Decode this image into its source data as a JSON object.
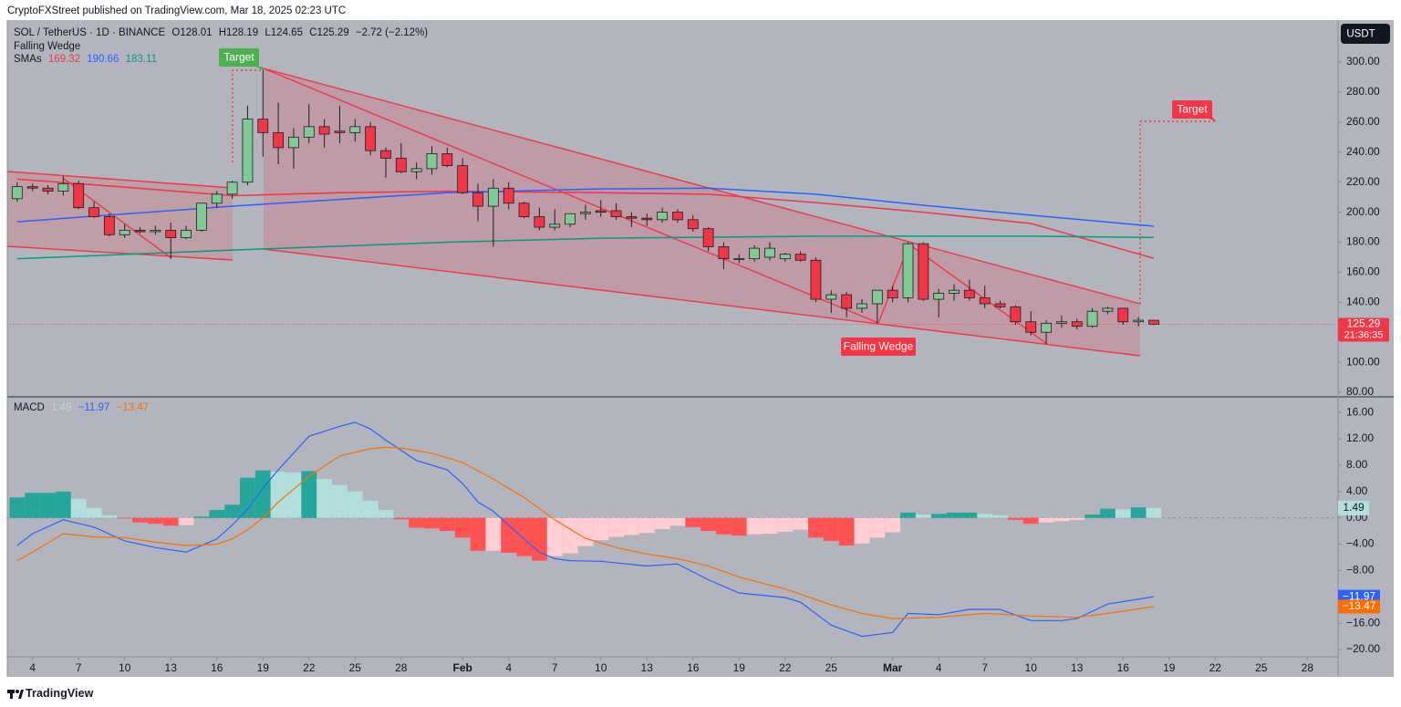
{
  "header": {
    "publisher": "CryptoFXStreet published on TradingView.com, Mar 18, 2025 02:23 UTC"
  },
  "footer": {
    "brand": "TradingView"
  },
  "chart_data": [
    {
      "type": "candlestick",
      "title": "SOL / TetherUS · 1D · BINANCE",
      "ohlc_labels": [
        "O128.01",
        "H128.19",
        "L124.65",
        "C125.29"
      ],
      "change_label": "−2.72 (−2.12%)",
      "pattern_label": "Falling Wedge",
      "sma_label": "SMAs",
      "currency": "USDT",
      "last_price_label": "125.29",
      "countdown": "21:36:35",
      "annotations": [
        "Target",
        "Target",
        "Falling Wedge"
      ],
      "up_color": "#81c995",
      "down_color": "#f23645",
      "outline_color": "#1e1e1e",
      "x": [
        "Jan 3",
        "Jan 4",
        "Jan 5",
        "Jan 6",
        "Jan 7",
        "Jan 8",
        "Jan 9",
        "Jan 10",
        "Jan 11",
        "Jan 12",
        "Jan 13",
        "Jan 14",
        "Jan 15",
        "Jan 16",
        "Jan 17",
        "Jan 18",
        "Jan 19",
        "Jan 20",
        "Jan 21",
        "Jan 22",
        "Jan 23",
        "Jan 24",
        "Jan 25",
        "Jan 26",
        "Jan 27",
        "Jan 28",
        "Jan 29",
        "Jan 30",
        "Jan 31",
        "Feb 1",
        "Feb 2",
        "Feb 3",
        "Feb 4",
        "Feb 5",
        "Feb 6",
        "Feb 7",
        "Feb 8",
        "Feb 9",
        "Feb 10",
        "Feb 11",
        "Feb 12",
        "Feb 13",
        "Feb 14",
        "Feb 15",
        "Feb 16",
        "Feb 17",
        "Feb 18",
        "Feb 19",
        "Feb 20",
        "Feb 21",
        "Feb 22",
        "Feb 23",
        "Feb 24",
        "Feb 25",
        "Feb 26",
        "Feb 27",
        "Feb 28",
        "Mar 1",
        "Mar 2",
        "Mar 3",
        "Mar 4",
        "Mar 5",
        "Mar 6",
        "Mar 7",
        "Mar 8",
        "Mar 9",
        "Mar 10",
        "Mar 11",
        "Mar 12",
        "Mar 13",
        "Mar 14",
        "Mar 15",
        "Mar 16",
        "Mar 17",
        "Mar 18"
      ],
      "open": [
        209,
        217,
        216,
        214,
        219,
        203,
        197,
        185,
        188,
        187,
        188,
        183,
        188,
        206,
        212,
        220,
        262,
        253,
        243,
        250,
        257,
        254,
        253,
        257,
        241,
        236,
        227,
        229,
        239,
        231,
        213,
        204,
        216,
        206,
        197,
        190,
        192,
        199,
        201,
        201,
        197,
        196,
        195,
        200,
        195,
        189,
        177,
        169,
        169,
        170,
        169,
        172,
        168,
        142,
        145,
        136,
        139,
        148,
        143,
        179,
        142,
        146,
        148,
        143,
        139,
        137,
        127,
        120,
        126,
        127,
        124,
        134,
        136,
        127,
        128.01
      ],
      "high": [
        220,
        219,
        218,
        224,
        221,
        207,
        199,
        192,
        190,
        191,
        193,
        191,
        206,
        214,
        221,
        271,
        295,
        273,
        256,
        272,
        262,
        271,
        262,
        260,
        243,
        246,
        233,
        244,
        243,
        236,
        219,
        222,
        220,
        207,
        203,
        202,
        198,
        205,
        208,
        206,
        200,
        199,
        203,
        202,
        198,
        190,
        180,
        172,
        178,
        180,
        173,
        174,
        170,
        148,
        147,
        142,
        148,
        151,
        180,
        180,
        149,
        152,
        155,
        151,
        141,
        138,
        134,
        128,
        131,
        129,
        136,
        137,
        136,
        130,
        128.19
      ],
      "low": [
        207,
        214,
        212,
        211,
        202,
        196,
        184,
        183,
        186,
        185,
        169,
        182,
        187,
        203,
        209,
        218,
        237,
        232,
        229,
        246,
        243,
        246,
        247,
        238,
        223,
        226,
        222,
        225,
        230,
        212,
        194,
        177,
        202,
        196,
        188,
        188,
        190,
        195,
        197,
        195,
        190,
        191,
        193,
        193,
        187,
        174,
        162,
        166,
        167,
        168,
        167,
        167,
        140,
        133,
        130,
        133,
        126,
        140,
        140,
        141,
        130,
        141,
        141,
        136,
        136,
        125,
        118,
        112,
        123,
        122,
        123,
        132,
        125,
        124,
        124.65
      ],
      "close": [
        217,
        216,
        214,
        219,
        203,
        197,
        185,
        188,
        187,
        188,
        183,
        188,
        206,
        212,
        220,
        262,
        253,
        243,
        250,
        257,
        252,
        253,
        257,
        241,
        236,
        227,
        229,
        239,
        231,
        213,
        204,
        216,
        206,
        197,
        190,
        192,
        199,
        200,
        200,
        197,
        196,
        195,
        200,
        195,
        189,
        177,
        169,
        169,
        176,
        176,
        172,
        168,
        142,
        145,
        136,
        139,
        148,
        143,
        179,
        142,
        146,
        148,
        143,
        139,
        137,
        127,
        120,
        126,
        127,
        124,
        134,
        136,
        127,
        128.01,
        125.29
      ],
      "series": [
        {
          "color": "#f23645",
          "value_label": "169.32",
          "x": [
            "Jan 3",
            "Jan 10",
            "Jan 17",
            "Jan 24",
            "Jan 31",
            "Feb 10",
            "Feb 17",
            "Feb 24",
            "Mar 3",
            "Mar 10",
            "Mar 18"
          ],
          "values": [
            222,
            216.7,
            211,
            213,
            214,
            213,
            212,
            206.4,
            200,
            192.5,
            169.32
          ]
        },
        {
          "color": "#2962ff",
          "value_label": "190.66",
          "x": [
            "Jan 3",
            "Jan 17",
            "Jan 31",
            "Feb 10",
            "Feb 17",
            "Feb 24",
            "Mar 3",
            "Mar 10",
            "Mar 18"
          ],
          "values": [
            193.6,
            204,
            213,
            215.5,
            216,
            212,
            204.6,
            198,
            190.66
          ]
        },
        {
          "color": "#089981",
          "value_label": "183.11",
          "x": [
            "Jan 3",
            "Jan 17",
            "Jan 31",
            "Feb 10",
            "Feb 24",
            "Mar 10",
            "Mar 18"
          ],
          "values": [
            169,
            174.8,
            180,
            182.7,
            184,
            184,
            183.11
          ]
        }
      ],
      "xlim": [
        "Jan 2",
        "Mar 30"
      ],
      "xticks": [
        {
          "value": "Jan 4",
          "label": "4"
        },
        {
          "value": "Jan 7",
          "label": "7"
        },
        {
          "value": "Jan 10",
          "label": "10"
        },
        {
          "value": "Jan 13",
          "label": "13"
        },
        {
          "value": "Jan 16",
          "label": "16"
        },
        {
          "value": "Jan 19",
          "label": "19"
        },
        {
          "value": "Jan 22",
          "label": "22"
        },
        {
          "value": "Jan 25",
          "label": "25"
        },
        {
          "value": "Jan 28",
          "label": "28"
        },
        {
          "value": "Feb 1",
          "label": "Feb"
        },
        {
          "value": "Feb 4",
          "label": "4"
        },
        {
          "value": "Feb 7",
          "label": "7"
        },
        {
          "value": "Feb 10",
          "label": "10"
        },
        {
          "value": "Feb 13",
          "label": "13"
        },
        {
          "value": "Feb 16",
          "label": "16"
        },
        {
          "value": "Feb 19",
          "label": "19"
        },
        {
          "value": "Feb 22",
          "label": "22"
        },
        {
          "value": "Feb 25",
          "label": "25"
        },
        {
          "value": "Mar 1",
          "label": "Mar"
        },
        {
          "value": "Mar 4",
          "label": "4"
        },
        {
          "value": "Mar 7",
          "label": "7"
        },
        {
          "value": "Mar 10",
          "label": "10"
        },
        {
          "value": "Mar 13",
          "label": "13"
        },
        {
          "value": "Mar 16",
          "label": "16"
        },
        {
          "value": "Mar 19",
          "label": "19"
        },
        {
          "value": "Mar 22",
          "label": "22"
        },
        {
          "value": "Mar 25",
          "label": "25"
        },
        {
          "value": "Mar 28",
          "label": "28"
        }
      ],
      "ylim": [
        77,
        328
      ],
      "yticks": [
        {
          "value": 80,
          "label": "80.00"
        },
        {
          "value": 100,
          "label": "100.00"
        },
        {
          "value": 120,
          "label": "120.00"
        },
        {
          "value": 140,
          "label": "140.00"
        },
        {
          "value": 160,
          "label": "160.00"
        },
        {
          "value": 180,
          "label": "180.00"
        },
        {
          "value": 200,
          "label": "200.00"
        },
        {
          "value": 220,
          "label": "220.00"
        },
        {
          "value": 240,
          "label": "240.00"
        },
        {
          "value": 260,
          "label": "260.00"
        },
        {
          "value": 280,
          "label": "280.00"
        },
        {
          "value": 300,
          "label": "300.00"
        }
      ]
    },
    {
      "type": "macd",
      "title": "MACD",
      "x": [
        "Jan 3",
        "Jan 4",
        "Jan 5",
        "Jan 6",
        "Jan 7",
        "Jan 8",
        "Jan 9",
        "Jan 10",
        "Jan 11",
        "Jan 12",
        "Jan 13",
        "Jan 14",
        "Jan 15",
        "Jan 16",
        "Jan 17",
        "Jan 18",
        "Jan 19",
        "Jan 20",
        "Jan 21",
        "Jan 22",
        "Jan 23",
        "Jan 24",
        "Jan 25",
        "Jan 26",
        "Jan 27",
        "Jan 28",
        "Jan 29",
        "Jan 30",
        "Jan 31",
        "Feb 1",
        "Feb 2",
        "Feb 3",
        "Feb 4",
        "Feb 5",
        "Feb 6",
        "Feb 7",
        "Feb 8",
        "Feb 9",
        "Feb 10",
        "Feb 11",
        "Feb 12",
        "Feb 13",
        "Feb 14",
        "Feb 15",
        "Feb 16",
        "Feb 17",
        "Feb 18",
        "Feb 19",
        "Feb 20",
        "Feb 21",
        "Feb 22",
        "Feb 23",
        "Feb 24",
        "Feb 25",
        "Feb 26",
        "Feb 27",
        "Feb 28",
        "Mar 1",
        "Mar 2",
        "Mar 3",
        "Mar 4",
        "Mar 5",
        "Mar 6",
        "Mar 7",
        "Mar 8",
        "Mar 9",
        "Mar 10",
        "Mar 11",
        "Mar 12",
        "Mar 13",
        "Mar 14",
        "Mar 15",
        "Mar 16",
        "Mar 17",
        "Mar 18"
      ],
      "values": [
        3.1,
        3.8,
        3.8,
        4.0,
        2.9,
        1.5,
        0.4,
        -0.1,
        -0.7,
        -0.9,
        -1.2,
        -1.1,
        0.2,
        1.2,
        2.0,
        6.1,
        7.2,
        7.0,
        6.9,
        7.1,
        5.9,
        5.0,
        4.0,
        2.6,
        1.2,
        -0.2,
        -1.5,
        -1.6,
        -2.0,
        -3.0,
        -5.0,
        -5.0,
        -5.3,
        -5.8,
        -6.5,
        -5.8,
        -5.4,
        -4.3,
        -3.4,
        -2.9,
        -2.6,
        -2.3,
        -1.7,
        -1.2,
        -1.4,
        -2.0,
        -2.5,
        -2.7,
        -2.5,
        -2.4,
        -2.1,
        -1.8,
        -3.0,
        -3.5,
        -4.2,
        -3.9,
        -3.0,
        -2.2,
        0.8,
        0.5,
        0.6,
        0.8,
        0.8,
        0.6,
        0.4,
        -0.3,
        -0.9,
        -0.7,
        -0.5,
        -0.3,
        0.5,
        1.4,
        1.3,
        1.6,
        1.49
      ],
      "value_label": "1.49",
      "histogram_colors": {
        "rising_up": "#26a69a",
        "falling_up": "#b2dfdb",
        "falling_down": "#ff5252",
        "rising_down": "#ffcdd2"
      },
      "series": [
        {
          "color": "#2962ff",
          "value_label": "−11.97",
          "x": [
            "Jan 3",
            "Jan 4",
            "Jan 6",
            "Jan 8",
            "Jan 10",
            "Jan 12",
            "Jan 14",
            "Jan 16",
            "Jan 17",
            "Jan 18",
            "Jan 19",
            "Jan 20",
            "Jan 22",
            "Jan 24",
            "Jan 25",
            "Jan 26",
            "Jan 27",
            "Jan 29",
            "Jan 31",
            "Feb 1",
            "Feb 2",
            "Feb 3",
            "Feb 4",
            "Feb 5",
            "Feb 6",
            "Feb 7",
            "Feb 8",
            "Feb 10",
            "Feb 13",
            "Feb 15",
            "Feb 17",
            "Feb 19",
            "Feb 22",
            "Feb 23",
            "Feb 25",
            "Feb 27",
            "Mar 1",
            "Mar 2",
            "Mar 4",
            "Mar 6",
            "Mar 8",
            "Mar 10",
            "Mar 12",
            "Mar 13",
            "Mar 15",
            "Mar 18"
          ],
          "values": [
            -4.2,
            -2.4,
            -0.3,
            -1.4,
            -3.5,
            -4.5,
            -5.2,
            -3.2,
            -1.1,
            1.3,
            4.5,
            7.3,
            12.4,
            13.9,
            14.5,
            13.5,
            11.8,
            8.7,
            7.3,
            5.2,
            2.4,
            1.0,
            -1.1,
            -3.2,
            -5.2,
            -6.2,
            -6.5,
            -6.6,
            -7.3,
            -7.0,
            -9.4,
            -11.4,
            -12.1,
            -12.8,
            -16.3,
            -18.0,
            -17.4,
            -14.5,
            -14.7,
            -13.9,
            -13.9,
            -15.6,
            -15.6,
            -15.3,
            -13.1,
            -11.97
          ]
        },
        {
          "color": "#ff6d00",
          "value_label": "−13.47",
          "x": [
            "Jan 3",
            "Jan 4",
            "Jan 6",
            "Jan 8",
            "Jan 10",
            "Jan 12",
            "Jan 14",
            "Jan 16",
            "Jan 17",
            "Jan 18",
            "Jan 19",
            "Jan 20",
            "Jan 22",
            "Jan 24",
            "Jan 26",
            "Jan 27",
            "Jan 28",
            "Jan 30",
            "Feb 1",
            "Feb 3",
            "Feb 5",
            "Feb 7",
            "Feb 9",
            "Feb 11",
            "Feb 13",
            "Feb 15",
            "Feb 17",
            "Feb 19",
            "Feb 22",
            "Feb 25",
            "Feb 27",
            "Mar 1",
            "Mar 4",
            "Mar 7",
            "Mar 10",
            "Mar 13",
            "Mar 15",
            "Mar 18"
          ],
          "values": [
            -6.5,
            -5.2,
            -2.4,
            -2.9,
            -3.0,
            -3.7,
            -4.2,
            -4.0,
            -3.2,
            -1.8,
            0,
            2.4,
            6.3,
            9.4,
            10.5,
            10.7,
            10.6,
            9.8,
            8.4,
            5.9,
            3.1,
            -0.3,
            -3.1,
            -4.5,
            -5.5,
            -6.2,
            -7.3,
            -9.0,
            -10.8,
            -13.2,
            -14.5,
            -15.3,
            -15.1,
            -14.5,
            -14.9,
            -15.1,
            -14.5,
            -13.47
          ]
        }
      ],
      "xlim": [
        "Jan 2",
        "Mar 30"
      ],
      "ylim": [
        -21.1,
        18.1
      ],
      "yticks": [
        {
          "value": -20,
          "label": "−20.00"
        },
        {
          "value": -16,
          "label": "−16.00"
        },
        {
          "value": -12,
          "label": "−12.00"
        },
        {
          "value": -8,
          "label": "−8.00"
        },
        {
          "value": -4,
          "label": "−4.00"
        },
        {
          "value": 0,
          "label": "0.00"
        },
        {
          "value": 4,
          "label": "4.00"
        },
        {
          "value": 8,
          "label": "8.00"
        },
        {
          "value": 12,
          "label": "12.00"
        },
        {
          "value": 16,
          "label": "16.00"
        }
      ]
    }
  ]
}
